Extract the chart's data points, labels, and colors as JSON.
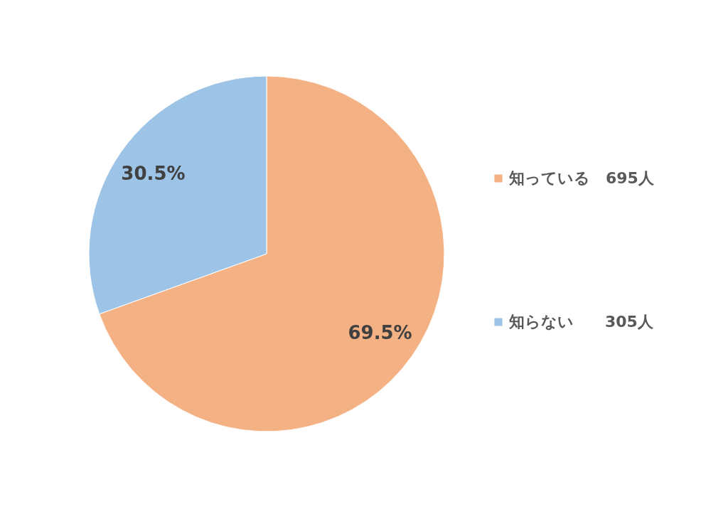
{
  "chart_data": {
    "type": "pie",
    "categories": [
      "知っている　695人",
      "知らない　　305人"
    ],
    "values": [
      69.5,
      30.5
    ],
    "value_labels": [
      "69.5%",
      "30.5%"
    ],
    "colors": [
      "#f4b183",
      "#9dc3e6"
    ],
    "legend": "right"
  }
}
